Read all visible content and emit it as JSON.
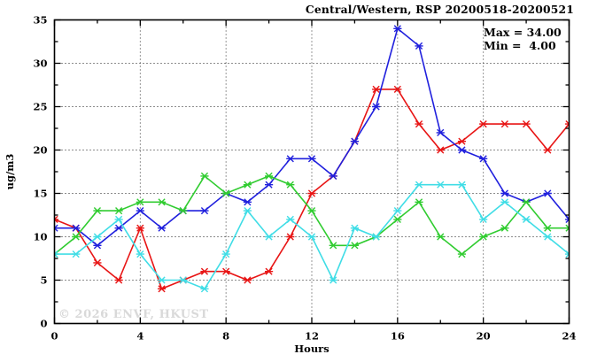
{
  "chart_data": {
    "type": "line",
    "title": "Central/Western, RSP 20200518-20200521",
    "xlabel": "Hours",
    "ylabel": "ug/m3",
    "xlim": [
      0,
      24
    ],
    "ylim": [
      0,
      35
    ],
    "xticks": [
      0,
      4,
      8,
      12,
      16,
      20,
      24
    ],
    "yticks": [
      0,
      5,
      10,
      15,
      20,
      25,
      30,
      35
    ],
    "grid": true,
    "legend_position": "top-right-inside",
    "annotations": {
      "max": "Max = 34.00",
      "min": "Min =  4.00"
    },
    "watermark": "© 2026 ENVF, HKUST",
    "x": [
      0,
      1,
      2,
      3,
      4,
      5,
      6,
      7,
      8,
      9,
      10,
      11,
      12,
      13,
      14,
      15,
      16,
      17,
      18,
      19,
      20,
      21,
      22,
      23,
      24
    ],
    "series": [
      {
        "name": "red",
        "color": "#e81515",
        "values": [
          12,
          11,
          7,
          5,
          11,
          4,
          5,
          6,
          6,
          5,
          6,
          10,
          15,
          17,
          21,
          27,
          27,
          23,
          20,
          21,
          23,
          23,
          23,
          20,
          23
        ]
      },
      {
        "name": "blue",
        "color": "#2020dd",
        "values": [
          11,
          11,
          9,
          11,
          13,
          11,
          13,
          13,
          15,
          14,
          16,
          19,
          19,
          17,
          21,
          25,
          34,
          32,
          22,
          20,
          19,
          15,
          14,
          15,
          12
        ]
      },
      {
        "name": "green",
        "color": "#30cc30",
        "values": [
          8,
          10,
          13,
          13,
          14,
          14,
          13,
          17,
          15,
          16,
          17,
          16,
          13,
          9,
          9,
          10,
          12,
          14,
          10,
          8,
          10,
          11,
          14,
          11,
          11
        ]
      },
      {
        "name": "cyan",
        "color": "#40dde6",
        "values": [
          8,
          8,
          10,
          12,
          8,
          5,
          5,
          4,
          8,
          13,
          10,
          12,
          10,
          5,
          11,
          10,
          13,
          16,
          16,
          16,
          12,
          14,
          12,
          10,
          8
        ]
      }
    ]
  }
}
